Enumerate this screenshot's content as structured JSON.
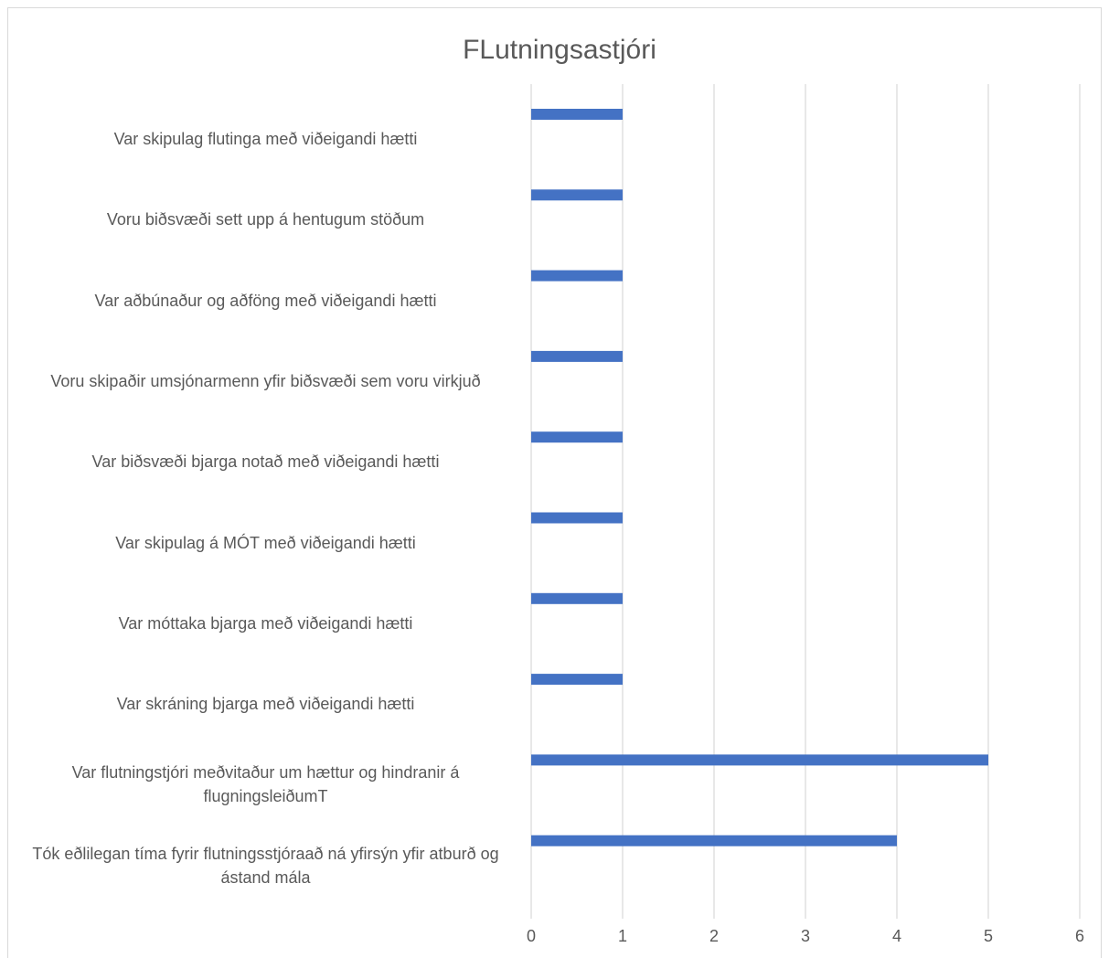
{
  "chart_data": {
    "type": "barh",
    "title": "FLutningsastjóri",
    "categories": [
      "Var skipulag flutinga með viðeigandi hætti",
      "Voru biðsvæði sett upp á hentugum stöðum",
      "Var aðbúnaður og aðföng með viðeigandi hætti",
      "Voru skipaðir umsjónarmenn yfir biðsvæði sem voru virkjuð",
      "Var biðsvæði bjarga notað með viðeigandi hætti",
      "Var skipulag á MÓT með viðeigandi hætti",
      "Var móttaka bjarga með viðeigandi hætti",
      "Var skráning bjarga með viðeigandi hætti",
      "Var flutningstjóri meðvitaður um hættur og hindranir á flugningsleiðumT",
      "Tók eðlilegan tíma fyrir flutningsstjóraað ná yfirsýn yfir atburð og ástand mála"
    ],
    "values": [
      1,
      1,
      1,
      1,
      1,
      1,
      1,
      1,
      5,
      4
    ],
    "color": "#4472c4",
    "xlim": [
      0,
      6
    ],
    "xticks": [
      0,
      1,
      2,
      3,
      4,
      5,
      6
    ],
    "grid": true
  }
}
